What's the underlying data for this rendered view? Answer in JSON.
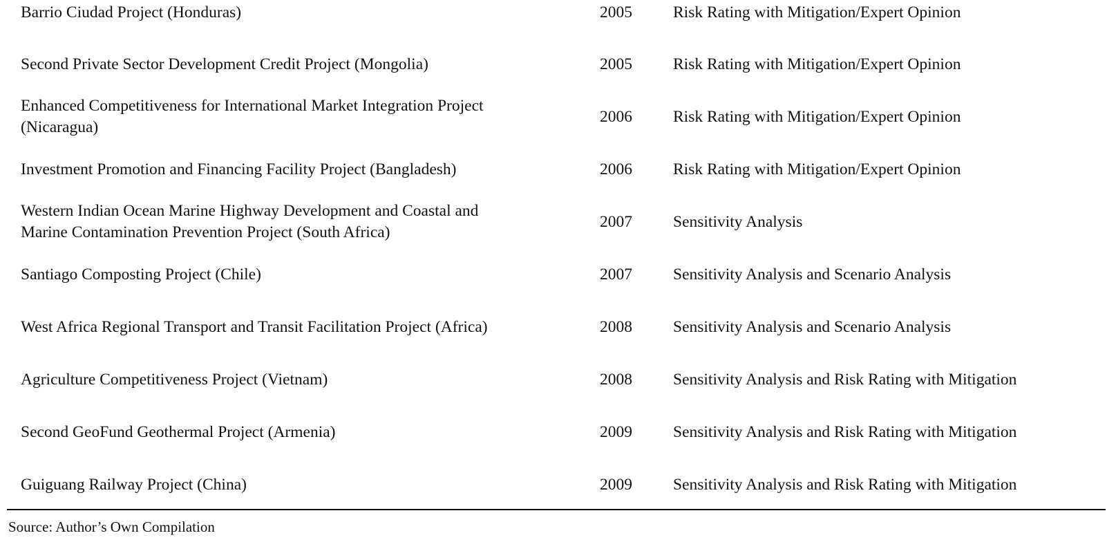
{
  "table": {
    "rows": [
      {
        "project": "Barrio Ciudad Project (Honduras)",
        "year": "2005",
        "method": "Risk Rating with Mitigation/Expert Opinion"
      },
      {
        "project": "Second Private Sector Development Credit Project (Mongolia)",
        "year": "2005",
        "method": "Risk Rating with Mitigation/Expert Opinion"
      },
      {
        "project": "Enhanced Competitiveness for International Market Integration Project (Nicaragua)",
        "year": "2006",
        "method": "Risk Rating with Mitigation/Expert Opinion"
      },
      {
        "project": "Investment Promotion and Financing Facility Project (Bangladesh)",
        "year": "2006",
        "method": "Risk Rating with Mitigation/Expert Opinion"
      },
      {
        "project": "Western Indian Ocean Marine Highway Development and Coastal and Marine Contamination Prevention Project (South Africa)",
        "year": "2007",
        "method": "Sensitivity Analysis"
      },
      {
        "project": "Santiago Composting Project (Chile)",
        "year": "2007",
        "method": "Sensitivity Analysis and Scenario Analysis"
      },
      {
        "project": "West Africa Regional Transport and Transit Facilitation Project (Africa)",
        "year": "2008",
        "method": "Sensitivity Analysis and Scenario Analysis"
      },
      {
        "project": "Agriculture Competitiveness Project (Vietnam)",
        "year": "2008",
        "method": "Sensitivity Analysis and Risk Rating with Mitigation"
      },
      {
        "project": "Second GeoFund Geothermal Project (Armenia)",
        "year": "2009",
        "method": "Sensitivity Analysis and Risk Rating with Mitigation"
      },
      {
        "project": "Guiguang Railway Project (China)",
        "year": "2009",
        "method": "Sensitivity Analysis and Risk Rating with Mitigation"
      }
    ]
  },
  "source_note": "Source: Author’s Own Compilation"
}
